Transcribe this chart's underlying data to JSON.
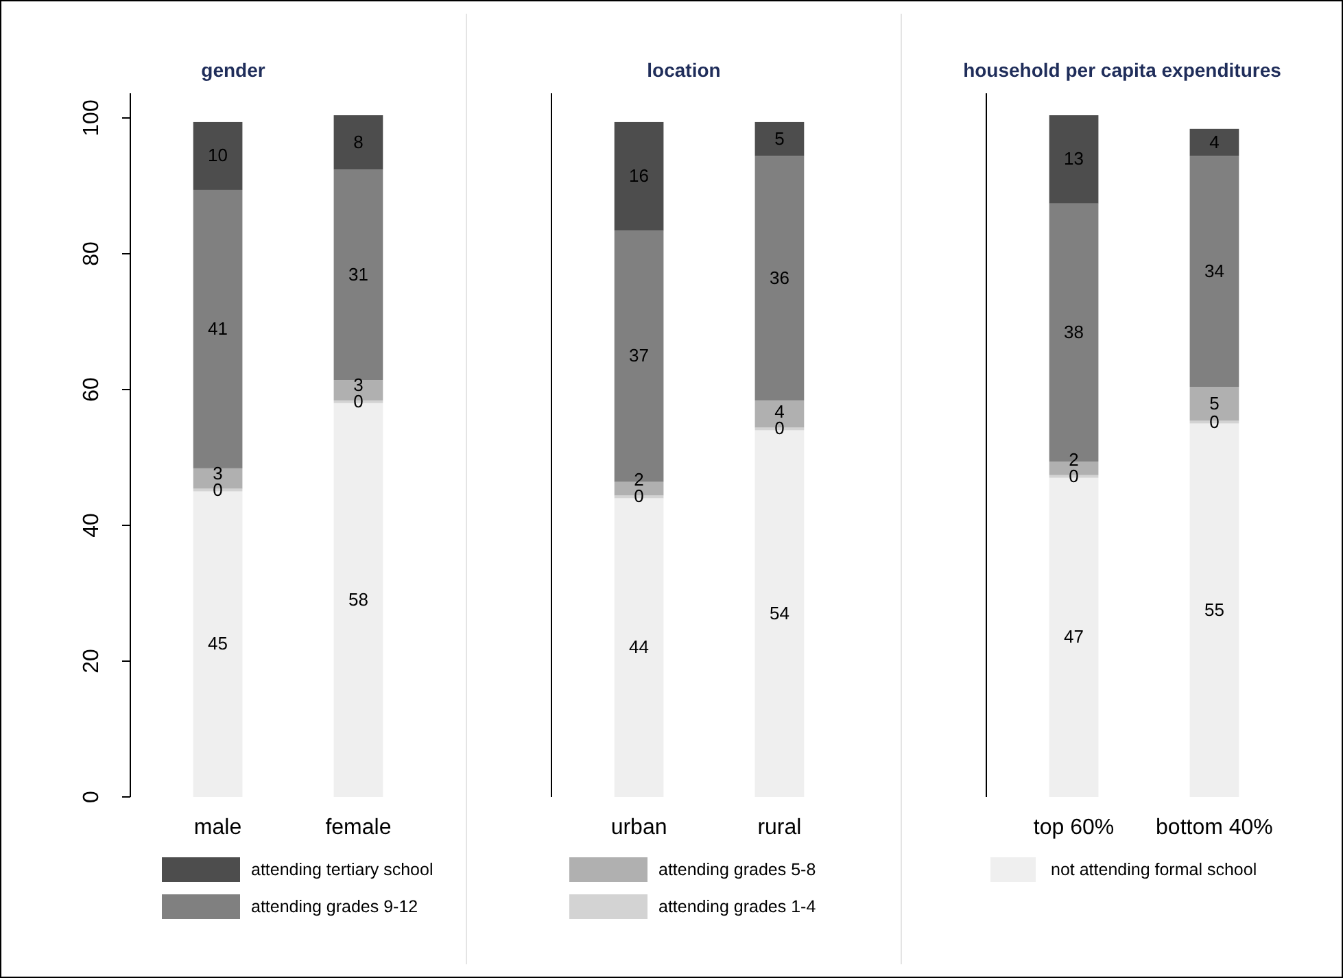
{
  "chart_data": [
    {
      "type": "bar",
      "title": "gender",
      "categories": [
        "male",
        "female"
      ],
      "stacked": true,
      "legend": "bottom",
      "ylim": [
        0,
        100
      ],
      "yticks": [
        0,
        20,
        40,
        60,
        80,
        100
      ],
      "series": [
        {
          "name": "not attending formal school",
          "color": "#efefef",
          "values": [
            45,
            58
          ],
          "value_labels": [
            "45",
            "58"
          ]
        },
        {
          "name": "attending grades 1-4",
          "color": "#d3d3d3",
          "values": [
            0.4,
            0.4
          ],
          "value_labels": [
            "0",
            "0"
          ]
        },
        {
          "name": "attending grades 5-8",
          "color": "#b0b0b0",
          "values": [
            3,
            3
          ],
          "value_labels": [
            "3",
            "3"
          ]
        },
        {
          "name": "attending grades 9-12",
          "color": "#808080",
          "values": [
            41,
            31
          ],
          "value_labels": [
            "41",
            "31"
          ]
        },
        {
          "name": "attending tertiary school",
          "color": "#4d4d4d",
          "values": [
            10,
            8
          ],
          "value_labels": [
            "10",
            "8"
          ]
        }
      ]
    },
    {
      "type": "bar",
      "title": "location",
      "categories": [
        "urban",
        "rural"
      ],
      "stacked": true,
      "ylim": [
        0,
        100
      ],
      "tick_labels": "x",
      "series": [
        {
          "color": "#efefef",
          "values": [
            44,
            54
          ],
          "value_labels": [
            "44",
            "54"
          ]
        },
        {
          "color": "#d3d3d3",
          "values": [
            0.4,
            0.4
          ],
          "value_labels": [
            "0",
            "0"
          ]
        },
        {
          "color": "#b0b0b0",
          "values": [
            2,
            4
          ],
          "value_labels": [
            "2",
            "4"
          ]
        },
        {
          "color": "#808080",
          "values": [
            37,
            36
          ],
          "value_labels": [
            "37",
            "36"
          ]
        },
        {
          "color": "#4d4d4d",
          "values": [
            16,
            5
          ],
          "value_labels": [
            "16",
            "5"
          ]
        }
      ]
    },
    {
      "type": "bar",
      "title": "household per capita expenditures",
      "categories": [
        "top 60%",
        "bottom 40%"
      ],
      "stacked": true,
      "ylim": [
        0,
        100
      ],
      "tick_labels": "x",
      "series": [
        {
          "color": "#efefef",
          "values": [
            47,
            55
          ],
          "value_labels": [
            "47",
            "55"
          ]
        },
        {
          "color": "#d3d3d3",
          "values": [
            0.4,
            0.4
          ],
          "value_labels": [
            "0",
            "0"
          ]
        },
        {
          "color": "#b0b0b0",
          "values": [
            2,
            5
          ],
          "value_labels": [
            "2",
            "5"
          ]
        },
        {
          "color": "#808080",
          "values": [
            38,
            34
          ],
          "value_labels": [
            "38",
            "34"
          ]
        },
        {
          "color": "#4d4d4d",
          "values": [
            13,
            4
          ],
          "value_labels": [
            "13",
            "4"
          ]
        }
      ]
    }
  ]
}
